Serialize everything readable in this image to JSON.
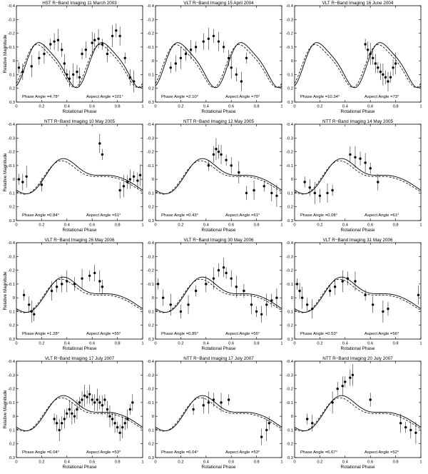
{
  "figure": {
    "colors": {
      "axis": "#000000",
      "model_solid": "#000000",
      "model_dashed": "#000000",
      "points": "#000000",
      "errorbars": "#000000"
    }
  },
  "chart_data": [
    {
      "type": "scatter",
      "title": "HST R−Band Imaging 11 March 2003",
      "xlabel": "Rotational Phase",
      "ylabel": "Relative Magnitude",
      "xlim": [
        0,
        1
      ],
      "ylim": [
        0.3,
        -0.4
      ],
      "xticks": [
        "0",
        "0.2",
        "0.4",
        "0.6",
        "0.8",
        "1"
      ],
      "yticks": [
        "-0.4",
        "-0.3",
        "-0.2",
        "-0.1",
        "0",
        "0.1",
        "0.2",
        "0.3"
      ],
      "phase_angle": "Phase Angle =4.78°",
      "aspect_angle": "Aspect Angle =101°",
      "model": "double-peak",
      "points": [
        [
          0.02,
          0.05
        ],
        [
          0.05,
          0.08
        ],
        [
          0.12,
          0.04
        ],
        [
          0.18,
          -0.02
        ],
        [
          0.22,
          -0.05
        ],
        [
          0.27,
          -0.12
        ],
        [
          0.3,
          -0.14
        ],
        [
          0.33,
          -0.15
        ],
        [
          0.36,
          -0.08
        ],
        [
          0.38,
          0.02
        ],
        [
          0.4,
          0.1
        ],
        [
          0.42,
          0.13
        ],
        [
          0.45,
          0.1
        ],
        [
          0.48,
          0.08
        ],
        [
          0.5,
          0.12
        ],
        [
          0.52,
          -0.05
        ],
        [
          0.55,
          -0.08
        ],
        [
          0.6,
          -0.13
        ],
        [
          0.62,
          -0.15
        ],
        [
          0.65,
          -0.16
        ],
        [
          0.68,
          -0.12
        ],
        [
          0.72,
          -0.05
        ],
        [
          0.76,
          -0.18
        ],
        [
          0.79,
          -0.22
        ],
        [
          0.82,
          -0.18
        ],
        [
          0.86,
          -0.02
        ],
        [
          0.9,
          0.12
        ],
        [
          0.93,
          0.15
        ]
      ]
    },
    {
      "type": "scatter",
      "title": "VLT R−Band Imaging 15 April 2004",
      "xlabel": "Rotational Phase",
      "ylabel": "",
      "xlim": [
        0,
        1
      ],
      "ylim": [
        0.3,
        -0.4
      ],
      "xticks": [
        "0",
        "0.2",
        "0.4",
        "0.6",
        "0.8",
        "1"
      ],
      "yticks": [
        "-0.4",
        "-0.3",
        "-0.2",
        "-0.1",
        "0",
        "0.1",
        "0.2",
        "0.3"
      ],
      "phase_angle": "Phase Angle =2.10°",
      "aspect_angle": "Aspect Angle =70°",
      "model": "double-peak",
      "points": [
        [
          0.12,
          0.05
        ],
        [
          0.16,
          0.02
        ],
        [
          0.2,
          -0.02
        ],
        [
          0.24,
          -0.05
        ],
        [
          0.28,
          -0.08
        ],
        [
          0.32,
          -0.1
        ],
        [
          0.38,
          -0.14
        ],
        [
          0.42,
          -0.16
        ],
        [
          0.46,
          -0.18
        ],
        [
          0.5,
          -0.14
        ],
        [
          0.54,
          -0.1
        ],
        [
          0.58,
          -0.02
        ],
        [
          0.6,
          0.05
        ],
        [
          0.64,
          0.1
        ],
        [
          0.68,
          0.15
        ],
        [
          0.72,
          -0.02
        ]
      ]
    },
    {
      "type": "scatter",
      "title": "VLT R−Band Imaging 16 June 2004",
      "xlabel": "Rotational Phase",
      "ylabel": "",
      "xlim": [
        0,
        1
      ],
      "ylim": [
        0.3,
        -0.4
      ],
      "xticks": [
        "0",
        "0.2",
        "0.4",
        "0.6",
        "0.8",
        "1"
      ],
      "yticks": [
        "-0.4",
        "-0.3",
        "-0.2",
        "-0.1",
        "0",
        "0.1",
        "0.2",
        "0.3"
      ],
      "phase_angle": "Phase Angle =10.34°",
      "aspect_angle": "Aspect Angle =73°",
      "model": "double-peak",
      "points": [
        [
          0.56,
          -0.12
        ],
        [
          0.58,
          -0.08
        ],
        [
          0.6,
          -0.05
        ],
        [
          0.62,
          -0.02
        ],
        [
          0.64,
          0.02
        ],
        [
          0.66,
          0.05
        ],
        [
          0.68,
          0.08
        ],
        [
          0.7,
          0.1
        ],
        [
          0.72,
          0.12
        ],
        [
          0.74,
          0.15
        ],
        [
          0.76,
          0.12
        ],
        [
          0.78,
          0.05
        ],
        [
          0.8,
          0.02
        ]
      ]
    },
    {
      "type": "scatter",
      "title": "NTT R−Band Imaging 10 May 2005",
      "xlabel": "Rotational Phase",
      "ylabel": "Relative Magnitude",
      "xlim": [
        0,
        1
      ],
      "ylim": [
        0.3,
        -0.4
      ],
      "xticks": [
        "0",
        "0.2",
        "0.4",
        "0.6",
        "0.8",
        "1"
      ],
      "yticks": [
        "-0.4",
        "-0.3",
        "-0.2",
        "-0.1",
        "0",
        "0.1",
        "0.2",
        "0.3"
      ],
      "phase_angle": "Phase Angle =0.84°",
      "aspect_angle": "Aspect Angle =61°",
      "model": "single-bump",
      "points": [
        [
          0.02,
          0.0
        ],
        [
          0.05,
          0.02
        ],
        [
          0.08,
          -0.02
        ],
        [
          0.2,
          0.04
        ],
        [
          0.66,
          -0.26
        ],
        [
          0.68,
          -0.18
        ],
        [
          0.82,
          0.08
        ],
        [
          0.85,
          0.05
        ],
        [
          0.88,
          0.02
        ],
        [
          0.9,
          0.0
        ],
        [
          0.93,
          -0.02
        ],
        [
          0.96,
          0.01
        ],
        [
          0.98,
          -0.03
        ]
      ]
    },
    {
      "type": "scatter",
      "title": "NTT R−Band Imaging 12 May 2005",
      "xlabel": "Rotational Phase",
      "ylabel": "",
      "xlim": [
        0,
        1
      ],
      "ylim": [
        0.3,
        -0.4
      ],
      "xticks": [
        "0",
        "0.2",
        "0.4",
        "0.6",
        "0.8",
        "1"
      ],
      "yticks": [
        "-0.4",
        "-0.3",
        "-0.2",
        "-0.1",
        "0",
        "0.1",
        "0.2",
        "0.3"
      ],
      "phase_angle": "Phase Angle =0.43°",
      "aspect_angle": "Aspect Angle =61°",
      "model": "single-bump",
      "points": [
        [
          0.42,
          -0.1
        ],
        [
          0.46,
          -0.18
        ],
        [
          0.48,
          -0.22
        ],
        [
          0.5,
          -0.2
        ],
        [
          0.52,
          -0.18
        ],
        [
          0.56,
          -0.14
        ],
        [
          0.6,
          -0.1
        ],
        [
          0.66,
          -0.05
        ],
        [
          0.72,
          0.1
        ],
        [
          0.78,
          0.08
        ],
        [
          0.86,
          0.05
        ],
        [
          0.92,
          0.1
        ],
        [
          0.96,
          0.12
        ]
      ]
    },
    {
      "type": "scatter",
      "title": "NTT R−Band Imaging 14 May 2005",
      "xlabel": "Rotational Phase",
      "ylabel": "",
      "xlim": [
        0,
        1
      ],
      "ylim": [
        0.3,
        -0.4
      ],
      "xticks": [
        "0",
        "0.2",
        "0.4",
        "0.6",
        "0.8",
        "1"
      ],
      "yticks": [
        "-0.4",
        "-0.3",
        "-0.2",
        "-0.1",
        "0",
        "0.1",
        "0.2",
        "0.3"
      ],
      "phase_angle": "Phase Angle =0.08°",
      "aspect_angle": "Aspect Angle =61°",
      "model": "single-bump",
      "points": [
        [
          0.08,
          0.02
        ],
        [
          0.12,
          0.06
        ],
        [
          0.16,
          0.1
        ],
        [
          0.2,
          0.12
        ],
        [
          0.26,
          0.1
        ],
        [
          0.3,
          0.08
        ],
        [
          0.44,
          -0.18
        ],
        [
          0.48,
          -0.16
        ],
        [
          0.52,
          -0.15
        ],
        [
          0.56,
          -0.12
        ],
        [
          0.6,
          -0.08
        ],
        [
          0.66,
          0.02
        ]
      ]
    },
    {
      "type": "scatter",
      "title": "VLT R−Band Imaging 26 May 2006",
      "xlabel": "Rotational Phase",
      "ylabel": "Relative Magnitude",
      "xlim": [
        0,
        1
      ],
      "ylim": [
        0.3,
        -0.4
      ],
      "xticks": [
        "0",
        "0.2",
        "0.4",
        "0.6",
        "0.8",
        "1"
      ],
      "yticks": [
        "-0.4",
        "-0.3",
        "-0.2",
        "-0.1",
        "0",
        "0.1",
        "0.2",
        "0.3"
      ],
      "phase_angle": "Phase Angle =1.28°",
      "aspect_angle": "Aspect Angle =55°",
      "model": "single-bump",
      "points": [
        [
          0.06,
          -0.02
        ],
        [
          0.1,
          0.05
        ],
        [
          0.12,
          0.1
        ],
        [
          0.14,
          0.12
        ],
        [
          0.28,
          -0.05
        ],
        [
          0.32,
          -0.08
        ],
        [
          0.36,
          -0.1
        ],
        [
          0.4,
          -0.12
        ],
        [
          0.46,
          -0.1
        ],
        [
          0.52,
          -0.14
        ],
        [
          0.58,
          -0.16
        ],
        [
          0.62,
          -0.18
        ],
        [
          0.66,
          -0.12
        ],
        [
          0.68,
          -0.08
        ]
      ]
    },
    {
      "type": "scatter",
      "title": "VLT R−Band Imaging 30 May 2006",
      "xlabel": "Rotational Phase",
      "ylabel": "",
      "xlim": [
        0,
        1
      ],
      "ylim": [
        0.3,
        -0.4
      ],
      "xticks": [
        "0",
        "0.2",
        "0.4",
        "0.6",
        "0.8",
        "1"
      ],
      "yticks": [
        "-0.4",
        "-0.3",
        "-0.2",
        "-0.1",
        "0",
        "0.1",
        "0.2",
        "0.3"
      ],
      "phase_angle": "Phase Angle =0.85°",
      "aspect_angle": "Aspect Angle =55°",
      "model": "single-bump",
      "points": [
        [
          0.02,
          -0.1
        ],
        [
          0.06,
          0.0
        ],
        [
          0.12,
          0.05
        ],
        [
          0.2,
          0.1
        ],
        [
          0.26,
          0.05
        ],
        [
          0.32,
          -0.05
        ],
        [
          0.4,
          -0.1
        ],
        [
          0.46,
          -0.14
        ],
        [
          0.5,
          -0.2
        ],
        [
          0.54,
          -0.22
        ],
        [
          0.56,
          -0.18
        ],
        [
          0.6,
          -0.14
        ],
        [
          0.64,
          -0.08
        ],
        [
          0.7,
          -0.05
        ],
        [
          0.76,
          0.05
        ],
        [
          0.8,
          0.1
        ],
        [
          0.84,
          0.12
        ],
        [
          0.88,
          0.05
        ],
        [
          0.92,
          0.02
        ],
        [
          0.96,
          0.0
        ]
      ]
    },
    {
      "type": "scatter",
      "title": "VLT R−Band Imaging 31 May 2006",
      "xlabel": "Rotational Phase",
      "ylabel": "",
      "xlim": [
        0,
        1
      ],
      "ylim": [
        0.3,
        -0.4
      ],
      "xticks": [
        "0",
        "0.2",
        "0.4",
        "0.6",
        "0.8",
        "1"
      ],
      "yticks": [
        "-0.4",
        "-0.3",
        "-0.2",
        "-0.1",
        "0",
        "0.1",
        "0.2",
        "0.3"
      ],
      "phase_angle": "Phase Angle =0.53°",
      "aspect_angle": "Aspect Angle =56°",
      "model": "single-bump",
      "points": [
        [
          0.02,
          -0.1
        ],
        [
          0.04,
          -0.05
        ],
        [
          0.06,
          0.0
        ],
        [
          0.1,
          0.05
        ],
        [
          0.14,
          0.08
        ],
        [
          0.28,
          -0.05
        ],
        [
          0.32,
          -0.08
        ],
        [
          0.38,
          -0.12
        ],
        [
          0.42,
          -0.14
        ],
        [
          0.48,
          -0.12
        ],
        [
          0.56,
          -0.02
        ],
        [
          0.62,
          0.05
        ],
        [
          0.7,
          0.1
        ],
        [
          0.74,
          0.08
        ],
        [
          0.98,
          -0.02
        ]
      ]
    },
    {
      "type": "scatter",
      "title": "VLT R−Band Imaging 17 July 2007",
      "xlabel": "Rotational Phase",
      "ylabel": "Relative Magnitude",
      "xlim": [
        0,
        1
      ],
      "ylim": [
        0.3,
        -0.4
      ],
      "xticks": [
        "0",
        "0.2",
        "0.4",
        "0.6",
        "0.8",
        "1"
      ],
      "yticks": [
        "-0.4",
        "-0.3",
        "-0.2",
        "-0.1",
        "0",
        "0.1",
        "0.2",
        "0.3"
      ],
      "phase_angle": "Phase Angle =6.04°",
      "aspect_angle": "Aspect Angle =53°",
      "model": "single-bump",
      "points": [
        [
          0.3,
          0.02
        ],
        [
          0.32,
          0.05
        ],
        [
          0.34,
          0.1
        ],
        [
          0.36,
          0.05
        ],
        [
          0.38,
          0.02
        ],
        [
          0.4,
          -0.02
        ],
        [
          0.42,
          -0.05
        ],
        [
          0.44,
          -0.02
        ],
        [
          0.46,
          0.0
        ],
        [
          0.48,
          -0.05
        ],
        [
          0.5,
          -0.1
        ],
        [
          0.52,
          -0.12
        ],
        [
          0.54,
          -0.15
        ],
        [
          0.56,
          -0.14
        ],
        [
          0.58,
          -0.16
        ],
        [
          0.6,
          -0.12
        ],
        [
          0.62,
          -0.1
        ],
        [
          0.64,
          -0.12
        ],
        [
          0.66,
          -0.1
        ],
        [
          0.68,
          -0.08
        ],
        [
          0.7,
          -0.12
        ],
        [
          0.72,
          -0.05
        ],
        [
          0.74,
          0.0
        ],
        [
          0.76,
          0.02
        ],
        [
          0.78,
          0.05
        ],
        [
          0.8,
          0.08
        ],
        [
          0.82,
          0.12
        ],
        [
          0.84,
          0.08
        ],
        [
          0.86,
          0.05
        ],
        [
          0.88,
          0.02
        ],
        [
          0.9,
          -0.05
        ],
        [
          0.92,
          -0.1
        ]
      ]
    },
    {
      "type": "scatter",
      "title": "NTT R−Band Imaging 17 July 2007",
      "xlabel": "Rotational Phase",
      "ylabel": "",
      "xlim": [
        0,
        1
      ],
      "ylim": [
        0.3,
        -0.4
      ],
      "xticks": [
        "0",
        "0.2",
        "0.4",
        "0.6",
        "0.8",
        "1"
      ],
      "yticks": [
        "-0.4",
        "-0.3",
        "-0.2",
        "-0.1",
        "0",
        "0.1",
        "0.2",
        "0.3"
      ],
      "phase_angle": "Phase Angle =6.04°",
      "aspect_angle": "Aspect Angle =53°",
      "model": "single-bump",
      "points": [
        [
          0.3,
          -0.05
        ],
        [
          0.38,
          -0.08
        ],
        [
          0.42,
          -0.1
        ],
        [
          0.46,
          -0.12
        ],
        [
          0.52,
          -0.1
        ],
        [
          0.58,
          -0.12
        ],
        [
          0.84,
          0.15
        ],
        [
          0.88,
          0.1
        ],
        [
          0.9,
          0.05
        ]
      ]
    },
    {
      "type": "scatter",
      "title": "NTT R−Band Imaging 20 July 2007",
      "xlabel": "Rotational Phase",
      "ylabel": "",
      "xlim": [
        0,
        1
      ],
      "ylim": [
        0.3,
        -0.4
      ],
      "xticks": [
        "0",
        "0.2",
        "0.4",
        "0.6",
        "0.8",
        "1"
      ],
      "yticks": [
        "-0.4",
        "-0.3",
        "-0.2",
        "-0.1",
        "0",
        "0.1",
        "0.2",
        "0.3"
      ],
      "phase_angle": "Phase Angle =6.67°",
      "aspect_angle": "Aspect Angle =52°",
      "model": "single-bump",
      "points": [
        [
          0.1,
          0.02
        ],
        [
          0.14,
          0.05
        ],
        [
          0.3,
          -0.1
        ],
        [
          0.34,
          -0.2
        ],
        [
          0.38,
          -0.22
        ],
        [
          0.4,
          -0.25
        ],
        [
          0.44,
          -0.28
        ],
        [
          0.46,
          -0.3
        ],
        [
          0.6,
          -0.12
        ],
        [
          0.84,
          0.05
        ],
        [
          0.88,
          0.08
        ],
        [
          0.92,
          0.1
        ],
        [
          0.96,
          0.12
        ]
      ]
    }
  ]
}
